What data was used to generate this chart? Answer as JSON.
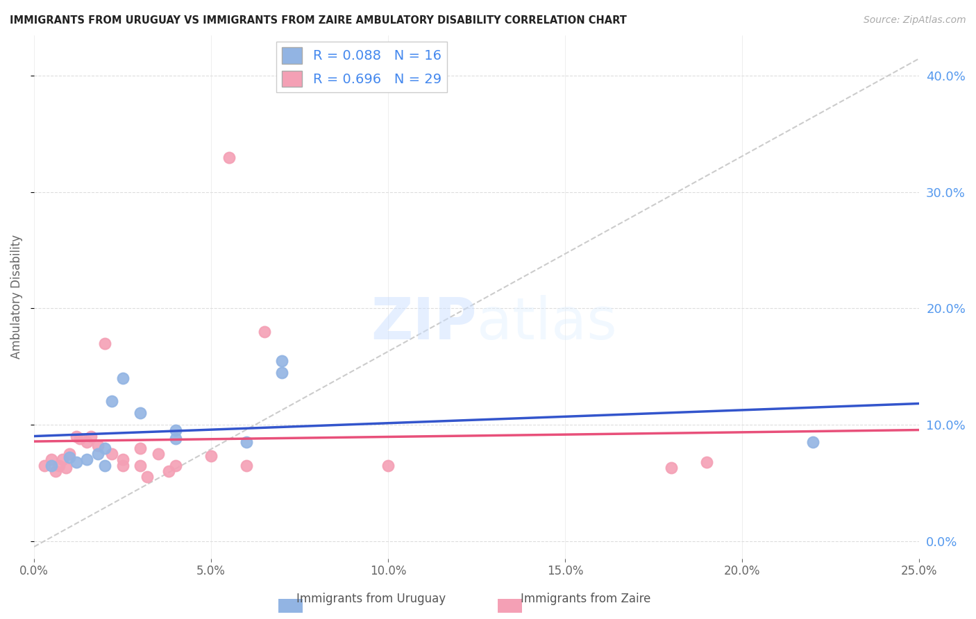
{
  "title": "IMMIGRANTS FROM URUGUAY VS IMMIGRANTS FROM ZAIRE AMBULATORY DISABILITY CORRELATION CHART",
  "source": "Source: ZipAtlas.com",
  "ylabel": "Ambulatory Disability",
  "xlim": [
    0.0,
    0.25
  ],
  "ylim": [
    -0.015,
    0.435
  ],
  "xticks": [
    0.0,
    0.05,
    0.1,
    0.15,
    0.2,
    0.25
  ],
  "yticks": [
    0.0,
    0.1,
    0.2,
    0.3,
    0.4
  ],
  "uruguay_R": 0.088,
  "uruguay_N": 16,
  "zaire_R": 0.696,
  "zaire_N": 29,
  "uruguay_color": "#92b4e3",
  "zaire_color": "#f4a0b5",
  "uruguay_line_color": "#3355cc",
  "zaire_line_color": "#e8507a",
  "ref_line_color": "#cccccc",
  "background_color": "#ffffff",
  "title_fontsize": 10.5,
  "uruguay_points_x": [
    0.005,
    0.01,
    0.012,
    0.015,
    0.018,
    0.02,
    0.02,
    0.022,
    0.025,
    0.03,
    0.04,
    0.04,
    0.06,
    0.07,
    0.07,
    0.22
  ],
  "uruguay_points_y": [
    0.065,
    0.072,
    0.068,
    0.07,
    0.075,
    0.08,
    0.065,
    0.12,
    0.14,
    0.11,
    0.095,
    0.088,
    0.085,
    0.155,
    0.145,
    0.085
  ],
  "zaire_points_x": [
    0.003,
    0.005,
    0.006,
    0.007,
    0.008,
    0.009,
    0.01,
    0.012,
    0.013,
    0.015,
    0.016,
    0.018,
    0.02,
    0.022,
    0.025,
    0.025,
    0.03,
    0.03,
    0.032,
    0.035,
    0.038,
    0.04,
    0.05,
    0.055,
    0.06,
    0.065,
    0.1,
    0.18,
    0.19
  ],
  "zaire_points_y": [
    0.065,
    0.07,
    0.06,
    0.065,
    0.07,
    0.063,
    0.075,
    0.09,
    0.088,
    0.085,
    0.09,
    0.082,
    0.17,
    0.075,
    0.065,
    0.07,
    0.08,
    0.065,
    0.055,
    0.075,
    0.06,
    0.065,
    0.073,
    0.33,
    0.065,
    0.18,
    0.065,
    0.063,
    0.068
  ]
}
